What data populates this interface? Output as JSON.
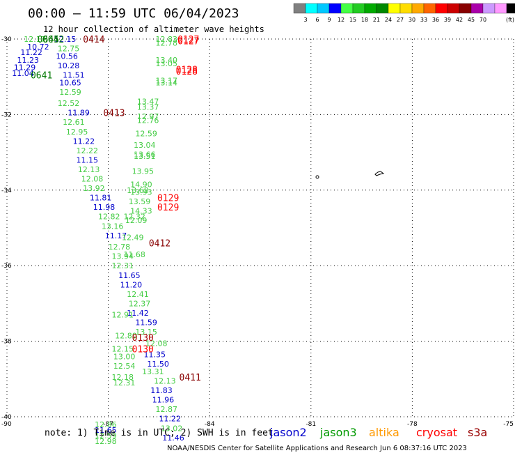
{
  "header": {
    "title": "00:00 – 11:59 UTC 06/04/2023",
    "subtitle": "12 hour collection of altimeter wave heights"
  },
  "legend": {
    "colors": [
      "#808080",
      "#00ffff",
      "#00c8ff",
      "#0000ff",
      "#44ff44",
      "#22cc22",
      "#00aa00",
      "#008800",
      "#ffff00",
      "#ffdd00",
      "#ffaa00",
      "#ff6600",
      "#ff0000",
      "#cc0000",
      "#880000",
      "#aa00aa",
      "#cc99ff",
      "#ff99ff",
      "#000000"
    ],
    "labels": [
      "3",
      "6",
      "9",
      "12",
      "15",
      "18",
      "21",
      "24",
      "27",
      "30",
      "33",
      "36",
      "39",
      "42",
      "45",
      "70"
    ],
    "unit": "(ft)"
  },
  "footer": {
    "note": "note:  1) Time is in UTC;  2) SWH is in feet",
    "credit": "NOAA/NESDIS Center for Satellite Applications and Research    Jun  6 08:37:16 UTC 2023",
    "satellites": [
      {
        "name": "jason2",
        "color": "#0000cc"
      },
      {
        "name": "jason3",
        "color": "#009900"
      },
      {
        "name": "altika",
        "color": "#ff9900"
      },
      {
        "name": "cryosat",
        "color": "#ff0000"
      },
      {
        "name": "s3a",
        "color": "#990000"
      }
    ]
  },
  "chart_data": {
    "type": "scatter",
    "title": "00:00 – 11:59 UTC 06/04/2023",
    "subtitle": "12 hour collection of altimeter wave heights",
    "xlim": [
      -90,
      -75
    ],
    "ylim": [
      -40,
      -30
    ],
    "x_ticks": [
      -90,
      -87,
      -84,
      -81,
      -78,
      -75
    ],
    "y_ticks": [
      -30,
      -32,
      -34,
      -36,
      -38,
      -40
    ],
    "x_tick_labels": [
      "-90",
      "-87",
      "-84",
      "-81",
      "-78",
      "-75"
    ],
    "y_tick_labels": [
      "-30",
      "-32",
      "-34",
      "-36",
      "-38",
      "-40"
    ],
    "grid": "dotted",
    "units": "ft",
    "points": [
      {
        "lon": -89.5,
        "lat": -30.0,
        "v": "12.17",
        "c": "#44cc44"
      },
      {
        "lon": -89.4,
        "lat": -30.2,
        "v": "10.72",
        "c": "#0000cc"
      },
      {
        "lon": -89.6,
        "lat": -30.35,
        "v": "11.22",
        "c": "#0000cc"
      },
      {
        "lon": -89.7,
        "lat": -30.55,
        "v": "11.23",
        "c": "#0000cc"
      },
      {
        "lon": -89.8,
        "lat": -30.75,
        "v": "11.29",
        "c": "#0000cc"
      },
      {
        "lon": -89.85,
        "lat": -30.9,
        "v": "11.04",
        "c": "#0000cc"
      },
      {
        "lon": -88.6,
        "lat": -30.0,
        "v": "12.15",
        "c": "#0000cc"
      },
      {
        "lon": -88.5,
        "lat": -30.25,
        "v": "12.75",
        "c": "#44cc44"
      },
      {
        "lon": -88.55,
        "lat": -30.45,
        "v": "10.56",
        "c": "#0000cc"
      },
      {
        "lon": -88.5,
        "lat": -30.7,
        "v": "10.28",
        "c": "#0000cc"
      },
      {
        "lon": -88.35,
        "lat": -30.95,
        "v": "11.51",
        "c": "#0000cc"
      },
      {
        "lon": -88.45,
        "lat": -31.15,
        "v": "10.65",
        "c": "#0000cc"
      },
      {
        "lon": -88.45,
        "lat": -31.4,
        "v": "12.59",
        "c": "#44cc44"
      },
      {
        "lon": -88.5,
        "lat": -31.7,
        "v": "12.52",
        "c": "#44cc44"
      },
      {
        "lon": -88.2,
        "lat": -31.95,
        "v": "11.89",
        "c": "#0000cc"
      },
      {
        "lon": -88.35,
        "lat": -32.2,
        "v": "12.61",
        "c": "#44cc44"
      },
      {
        "lon": -88.25,
        "lat": -32.45,
        "v": "12.95",
        "c": "#44cc44"
      },
      {
        "lon": -88.05,
        "lat": -32.7,
        "v": "11.22",
        "c": "#0000cc"
      },
      {
        "lon": -87.95,
        "lat": -32.95,
        "v": "12.22",
        "c": "#44cc44"
      },
      {
        "lon": -87.95,
        "lat": -33.2,
        "v": "11.15",
        "c": "#0000cc"
      },
      {
        "lon": -87.9,
        "lat": -33.45,
        "v": "12.13",
        "c": "#44cc44"
      },
      {
        "lon": -87.8,
        "lat": -33.7,
        "v": "12.08",
        "c": "#44cc44"
      },
      {
        "lon": -87.75,
        "lat": -33.95,
        "v": "13.92",
        "c": "#44cc44"
      },
      {
        "lon": -87.55,
        "lat": -34.2,
        "v": "11.81",
        "c": "#0000cc"
      },
      {
        "lon": -87.45,
        "lat": -34.45,
        "v": "11.98",
        "c": "#0000cc"
      },
      {
        "lon": -87.3,
        "lat": -34.7,
        "v": "12.82",
        "c": "#44cc44"
      },
      {
        "lon": -86.55,
        "lat": -34.7,
        "v": "12.32",
        "c": "#44cc44"
      },
      {
        "lon": -87.2,
        "lat": -34.95,
        "v": "13.16",
        "c": "#44cc44"
      },
      {
        "lon": -87.1,
        "lat": -35.2,
        "v": "11.17",
        "c": "#0000cc"
      },
      {
        "lon": -86.6,
        "lat": -35.25,
        "v": "12.49",
        "c": "#44cc44"
      },
      {
        "lon": -87.0,
        "lat": -35.5,
        "v": "12.78",
        "c": "#44cc44"
      },
      {
        "lon": -86.9,
        "lat": -35.75,
        "v": "13.94",
        "c": "#44cc44"
      },
      {
        "lon": -86.55,
        "lat": -35.7,
        "v": "11.68",
        "c": "#44cc44"
      },
      {
        "lon": -86.9,
        "lat": -36.0,
        "v": "12.31",
        "c": "#44cc44"
      },
      {
        "lon": -86.7,
        "lat": -36.25,
        "v": "11.65",
        "c": "#0000cc"
      },
      {
        "lon": -86.65,
        "lat": -36.5,
        "v": "11.20",
        "c": "#0000cc"
      },
      {
        "lon": -86.45,
        "lat": -36.75,
        "v": "12.41",
        "c": "#44cc44"
      },
      {
        "lon": -86.4,
        "lat": -37.0,
        "v": "12.37",
        "c": "#44cc44"
      },
      {
        "lon": -86.45,
        "lat": -37.25,
        "v": "11.42",
        "c": "#0000cc"
      },
      {
        "lon": -86.9,
        "lat": -37.3,
        "v": "12.91",
        "c": "#44cc44"
      },
      {
        "lon": -86.2,
        "lat": -37.5,
        "v": "11.59",
        "c": "#0000cc"
      },
      {
        "lon": -86.2,
        "lat": -37.75,
        "v": "13.15",
        "c": "#44cc44"
      },
      {
        "lon": -86.8,
        "lat": -37.85,
        "v": "12.80",
        "c": "#44cc44"
      },
      {
        "lon": -85.9,
        "lat": -38.05,
        "v": "12.08",
        "c": "#44cc44"
      },
      {
        "lon": -86.9,
        "lat": -38.2,
        "v": "12.15",
        "c": "#44cc44"
      },
      {
        "lon": -86.85,
        "lat": -38.4,
        "v": "13.00",
        "c": "#44cc44"
      },
      {
        "lon": -86.85,
        "lat": -38.65,
        "v": "12.54",
        "c": "#44cc44"
      },
      {
        "lon": -85.95,
        "lat": -38.35,
        "v": "11.35",
        "c": "#0000cc"
      },
      {
        "lon": -85.85,
        "lat": -38.6,
        "v": "11.50",
        "c": "#0000cc"
      },
      {
        "lon": -86.9,
        "lat": -38.95,
        "v": "12.18",
        "c": "#44cc44"
      },
      {
        "lon": -86.85,
        "lat": -39.1,
        "v": "12.31",
        "c": "#44cc44"
      },
      {
        "lon": -86.0,
        "lat": -38.8,
        "v": "13.31",
        "c": "#44cc44"
      },
      {
        "lon": -85.65,
        "lat": -39.05,
        "v": "12.13",
        "c": "#44cc44"
      },
      {
        "lon": -85.75,
        "lat": -39.3,
        "v": "11.83",
        "c": "#0000cc"
      },
      {
        "lon": -85.7,
        "lat": -39.55,
        "v": "11.96",
        "c": "#0000cc"
      },
      {
        "lon": -85.6,
        "lat": -39.8,
        "v": "12.87",
        "c": "#44cc44"
      },
      {
        "lon": -85.5,
        "lat": -40.05,
        "v": "11.22",
        "c": "#0000cc"
      },
      {
        "lon": -85.45,
        "lat": -40.3,
        "v": "13.02",
        "c": "#44cc44"
      },
      {
        "lon": -85.4,
        "lat": -40.55,
        "v": "11.46",
        "c": "#0000cc"
      },
      {
        "lon": -87.4,
        "lat": -40.2,
        "v": "12.86",
        "c": "#44cc44"
      },
      {
        "lon": -87.4,
        "lat": -40.35,
        "v": "11.65",
        "c": "#0000cc"
      },
      {
        "lon": -87.4,
        "lat": -40.5,
        "v": "12.59",
        "c": "#44cc44"
      },
      {
        "lon": -87.4,
        "lat": -40.65,
        "v": "12.98",
        "c": "#44cc44"
      },
      {
        "lon": -85.6,
        "lat": -30.0,
        "v": "12.83",
        "c": "#44cc44"
      },
      {
        "lon": -85.6,
        "lat": -30.1,
        "v": "12.78",
        "c": "#44cc44"
      },
      {
        "lon": -85.6,
        "lat": -30.55,
        "v": "13.40",
        "c": "#44cc44"
      },
      {
        "lon": -85.6,
        "lat": -30.65,
        "v": "13.05",
        "c": "#44cc44"
      },
      {
        "lon": -85.6,
        "lat": -31.1,
        "v": "13.17",
        "c": "#44cc44"
      },
      {
        "lon": -85.6,
        "lat": -31.15,
        "v": "13.14",
        "c": "#44cc44"
      },
      {
        "lon": -86.15,
        "lat": -31.65,
        "v": "13.47",
        "c": "#44cc44"
      },
      {
        "lon": -86.15,
        "lat": -31.8,
        "v": "13.37",
        "c": "#44cc44"
      },
      {
        "lon": -86.15,
        "lat": -32.05,
        "v": "12.97",
        "c": "#44cc44"
      },
      {
        "lon": -86.15,
        "lat": -32.15,
        "v": "12.76",
        "c": "#44cc44"
      },
      {
        "lon": -86.2,
        "lat": -32.5,
        "v": "12.59",
        "c": "#44cc44"
      },
      {
        "lon": -86.25,
        "lat": -32.8,
        "v": "13.04",
        "c": "#44cc44"
      },
      {
        "lon": -86.25,
        "lat": -33.05,
        "v": "13.66",
        "c": "#44cc44"
      },
      {
        "lon": -86.25,
        "lat": -33.1,
        "v": "13.51",
        "c": "#44cc44"
      },
      {
        "lon": -86.3,
        "lat": -33.5,
        "v": "13.95",
        "c": "#44cc44"
      },
      {
        "lon": -86.35,
        "lat": -33.85,
        "v": "14.90",
        "c": "#44cc44"
      },
      {
        "lon": -86.35,
        "lat": -34.05,
        "v": "13.93",
        "c": "#44cc44"
      },
      {
        "lon": -86.45,
        "lat": -34.0,
        "v": "13.68",
        "c": "#44cc44"
      },
      {
        "lon": -86.4,
        "lat": -34.3,
        "v": "13.59",
        "c": "#44cc44"
      },
      {
        "lon": -86.35,
        "lat": -34.55,
        "v": "14.33",
        "c": "#44cc44"
      },
      {
        "lon": -86.5,
        "lat": -34.8,
        "v": "12.09",
        "c": "#44cc44"
      }
    ],
    "time_labels": [
      {
        "lon": -89.1,
        "lat": -30.0,
        "t": "0645",
        "c": "#007700"
      },
      {
        "lon": -88.95,
        "lat": -30.0,
        "t": "0642",
        "c": "#007700"
      },
      {
        "lon": -87.75,
        "lat": -30.0,
        "t": "0414",
        "c": "#880000"
      },
      {
        "lon": -84.95,
        "lat": -30.0,
        "t": "0127",
        "c": "#ff0000"
      },
      {
        "lon": -84.95,
        "lat": -30.05,
        "t": "0127",
        "c": "#ff0000"
      },
      {
        "lon": -85.0,
        "lat": -30.8,
        "t": "0128",
        "c": "#ff0000"
      },
      {
        "lon": -85.0,
        "lat": -30.85,
        "t": "0128",
        "c": "#ff0000"
      },
      {
        "lon": -89.3,
        "lat": -30.95,
        "t": "0641",
        "c": "#007700"
      },
      {
        "lon": -87.15,
        "lat": -31.95,
        "t": "0413",
        "c": "#880000"
      },
      {
        "lon": -85.55,
        "lat": -34.2,
        "t": "0129",
        "c": "#ff0000"
      },
      {
        "lon": -85.55,
        "lat": -34.45,
        "t": "0129",
        "c": "#ff0000"
      },
      {
        "lon": -85.8,
        "lat": -35.4,
        "t": "0412",
        "c": "#880000"
      },
      {
        "lon": -86.3,
        "lat": -37.9,
        "t": "0130",
        "c": "#aa0000"
      },
      {
        "lon": -86.3,
        "lat": -38.2,
        "t": "0130",
        "c": "#ff0000"
      },
      {
        "lon": -84.9,
        "lat": -38.95,
        "t": "0411",
        "c": "#880000"
      }
    ]
  }
}
